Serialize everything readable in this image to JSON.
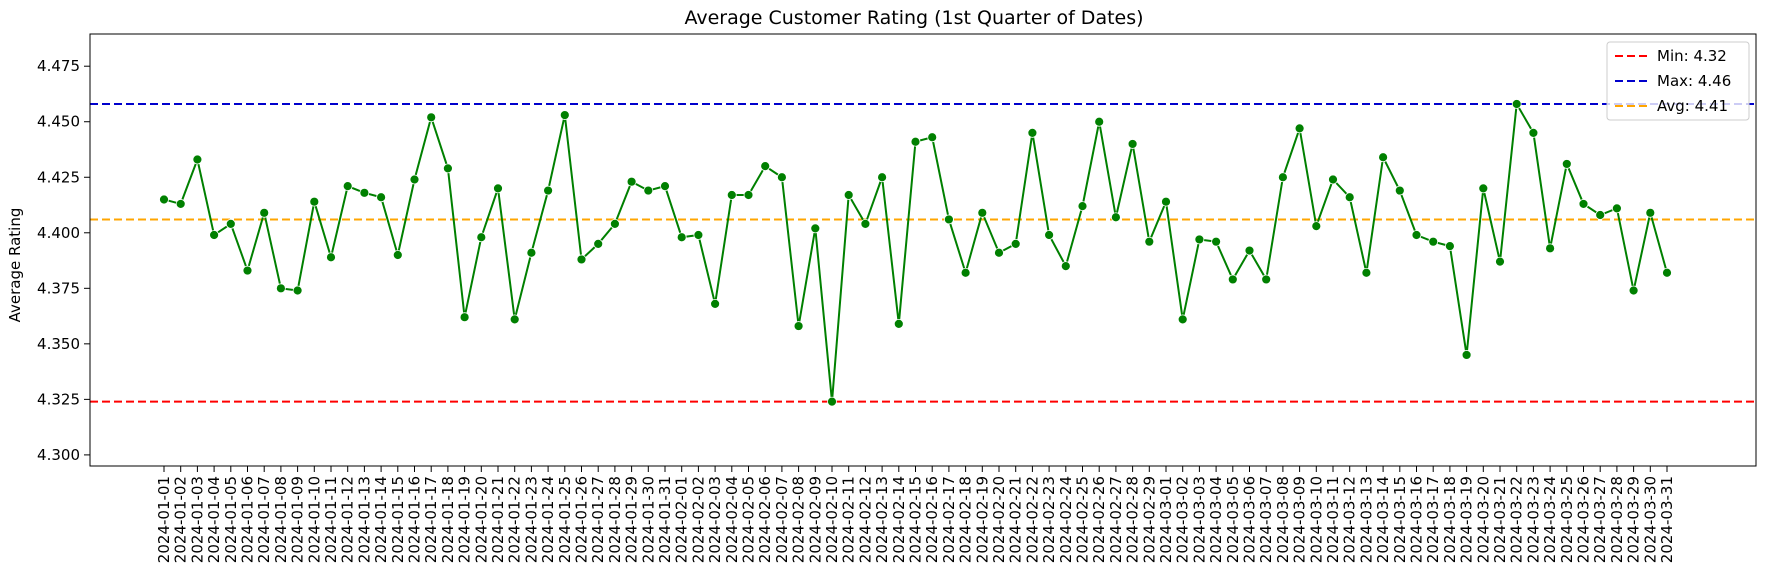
{
  "chart_data": {
    "type": "line",
    "title": "Average Customer Rating (1st Quarter of Dates)",
    "xlabel": "",
    "ylabel": "Average Rating",
    "ylim": [
      4.295,
      4.4895
    ],
    "yticks": [
      "4.300",
      "4.325",
      "4.350",
      "4.375",
      "4.400",
      "4.425",
      "4.450",
      "4.475"
    ],
    "grid": false,
    "legend_position": "top-right",
    "line_color": "#008000",
    "x": [
      "2024-01-01",
      "2024-01-02",
      "2024-01-03",
      "2024-01-04",
      "2024-01-05",
      "2024-01-06",
      "2024-01-07",
      "2024-01-08",
      "2024-01-09",
      "2024-01-10",
      "2024-01-11",
      "2024-01-12",
      "2024-01-13",
      "2024-01-14",
      "2024-01-15",
      "2024-01-16",
      "2024-01-17",
      "2024-01-18",
      "2024-01-19",
      "2024-01-20",
      "2024-01-21",
      "2024-01-22",
      "2024-01-23",
      "2024-01-24",
      "2024-01-25",
      "2024-01-26",
      "2024-01-27",
      "2024-01-28",
      "2024-01-29",
      "2024-01-30",
      "2024-01-31",
      "2024-02-01",
      "2024-02-02",
      "2024-02-03",
      "2024-02-04",
      "2024-02-05",
      "2024-02-06",
      "2024-02-07",
      "2024-02-08",
      "2024-02-09",
      "2024-02-10",
      "2024-02-11",
      "2024-02-12",
      "2024-02-13",
      "2024-02-14",
      "2024-02-15",
      "2024-02-16",
      "2024-02-17",
      "2024-02-18",
      "2024-02-19",
      "2024-02-20",
      "2024-02-21",
      "2024-02-22",
      "2024-02-23",
      "2024-02-24",
      "2024-02-25",
      "2024-02-26",
      "2024-02-27",
      "2024-02-28",
      "2024-02-29",
      "2024-03-01",
      "2024-03-02",
      "2024-03-03",
      "2024-03-04",
      "2024-03-05",
      "2024-03-06",
      "2024-03-07",
      "2024-03-08",
      "2024-03-09",
      "2024-03-10",
      "2024-03-11",
      "2024-03-12",
      "2024-03-13",
      "2024-03-14",
      "2024-03-15",
      "2024-03-16",
      "2024-03-17",
      "2024-03-18",
      "2024-03-19",
      "2024-03-20",
      "2024-03-21",
      "2024-03-22",
      "2024-03-23",
      "2024-03-24",
      "2024-03-25",
      "2024-03-26",
      "2024-03-27",
      "2024-03-28",
      "2024-03-29",
      "2024-03-30",
      "2024-03-31"
    ],
    "values": [
      4.415,
      4.413,
      4.433,
      4.399,
      4.404,
      4.383,
      4.409,
      4.375,
      4.374,
      4.414,
      4.389,
      4.421,
      4.418,
      4.416,
      4.39,
      4.424,
      4.452,
      4.429,
      4.362,
      4.398,
      4.42,
      4.361,
      4.391,
      4.419,
      4.453,
      4.388,
      4.395,
      4.404,
      4.423,
      4.419,
      4.421,
      4.398,
      4.399,
      4.368,
      4.417,
      4.417,
      4.43,
      4.425,
      4.358,
      4.402,
      4.324,
      4.417,
      4.404,
      4.425,
      4.359,
      4.441,
      4.443,
      4.406,
      4.382,
      4.409,
      4.391,
      4.395,
      4.445,
      4.399,
      4.385,
      4.412,
      4.45,
      4.407,
      4.44,
      4.396,
      4.414,
      4.361,
      4.397,
      4.396,
      4.379,
      4.392,
      4.379,
      4.425,
      4.447,
      4.403,
      4.424,
      4.416,
      4.382,
      4.434,
      4.419,
      4.399,
      4.396,
      4.394,
      4.345,
      4.42,
      4.387,
      4.458,
      4.445,
      4.393,
      4.431,
      4.413,
      4.408,
      4.411,
      4.374,
      4.409,
      4.382
    ],
    "reference_lines": [
      {
        "label": "Min: 4.32",
        "value": 4.324,
        "color": "#ff0000"
      },
      {
        "label": "Max: 4.46",
        "value": 4.458,
        "color": "#0000cc"
      },
      {
        "label": "Avg: 4.41",
        "value": 4.406,
        "color": "#ffa500"
      }
    ]
  }
}
